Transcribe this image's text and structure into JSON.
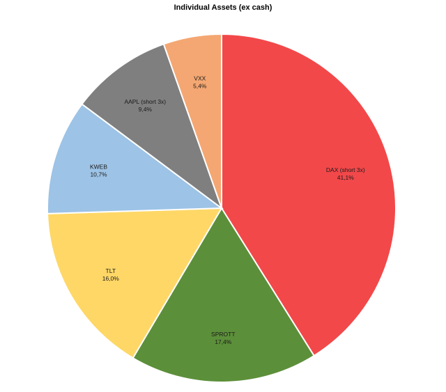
{
  "chart_data": {
    "type": "pie",
    "title": "Individual Assets (ex cash)",
    "slices": [
      {
        "label": "DAX (short 3x)",
        "value_label": "41,1%",
        "value": 41.1,
        "color": "#f2484a"
      },
      {
        "label": "SPROTT",
        "value_label": "17,4%",
        "value": 17.4,
        "color": "#5c8f3a"
      },
      {
        "label": "TLT",
        "value_label": "16,0%",
        "value": 16.0,
        "color": "#fed766"
      },
      {
        "label": "KWEB",
        "value_label": "10,7%",
        "value": 10.7,
        "color": "#9dc3e6"
      },
      {
        "label": "AAPL (short 3x)",
        "value_label": "9,4%",
        "value": 9.4,
        "color": "#7f7f7f"
      },
      {
        "label": "VXX",
        "value_label": "5,4%",
        "value": 5.4,
        "color": "#f4a772"
      }
    ]
  }
}
